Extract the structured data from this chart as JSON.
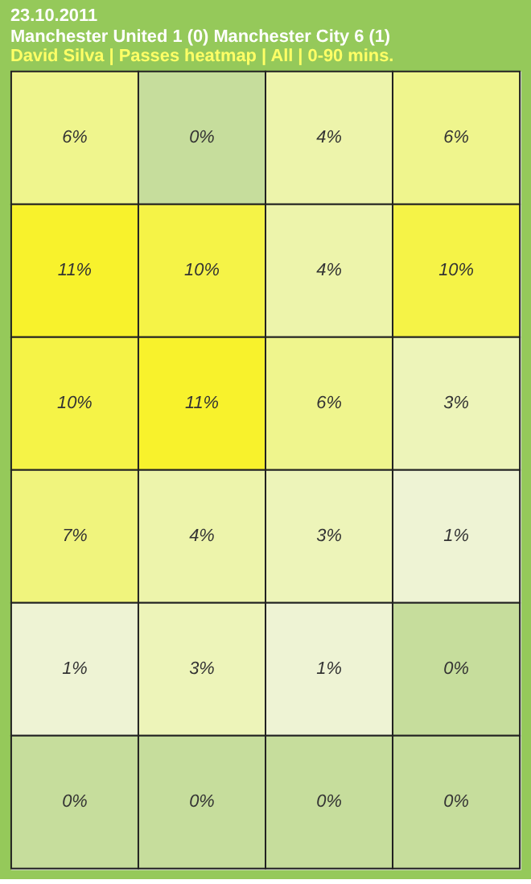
{
  "chart_data": {
    "type": "heatmap",
    "title": "23.10.2011",
    "subtitle": "Manchester United 1 (0) Manchester City 6 (1)",
    "annotations": [
      "David Silva | Passes heatmap | All | 0-90 mins."
    ],
    "categories": [
      null,
      null,
      null,
      null
    ],
    "y_categories": [
      null,
      null,
      null,
      null,
      null,
      null
    ],
    "cells": [
      [
        6,
        0,
        4,
        6
      ],
      [
        11,
        10,
        4,
        10
      ],
      [
        10,
        11,
        6,
        3
      ],
      [
        7,
        4,
        3,
        1
      ],
      [
        1,
        3,
        1,
        0
      ],
      [
        0,
        0,
        0,
        0
      ]
    ],
    "cell_labels": [
      [
        "6%",
        "0%",
        "4%",
        "6%"
      ],
      [
        "11%",
        "10%",
        "4%",
        "10%"
      ],
      [
        "10%",
        "11%",
        "6%",
        "3%"
      ],
      [
        "7%",
        "4%",
        "3%",
        "1%"
      ],
      [
        "1%",
        "3%",
        "1%",
        "0%"
      ],
      [
        "0%",
        "0%",
        "0%",
        "0%"
      ]
    ]
  }
}
